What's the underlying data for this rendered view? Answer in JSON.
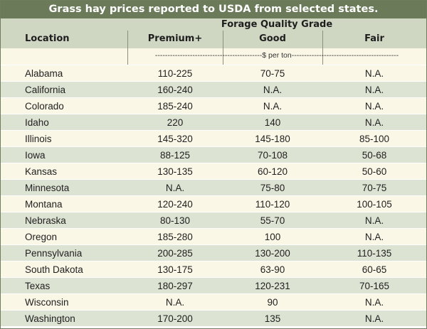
{
  "title": "Grass hay prices reported to USDA from selected states.",
  "header": {
    "group_label": "Forage Quality Grade",
    "location": "Location",
    "premium": "Premium+",
    "good": "Good",
    "fair": "Fair",
    "units": "-------------------------------------------$ per ton-------------------------------------------"
  },
  "rows": [
    {
      "location": "Alabama",
      "premium": "110-225",
      "good": "70-75",
      "fair": "N.A."
    },
    {
      "location": "California",
      "premium": "160-240",
      "good": "N.A.",
      "fair": "N.A."
    },
    {
      "location": "Colorado",
      "premium": "185-240",
      "good": "N.A.",
      "fair": "N.A."
    },
    {
      "location": "Idaho",
      "premium": "220",
      "good": "140",
      "fair": "N.A."
    },
    {
      "location": "Illinois",
      "premium": "145-320",
      "good": "145-180",
      "fair": "85-100"
    },
    {
      "location": "Iowa",
      "premium": "88-125",
      "good": "70-108",
      "fair": "50-68"
    },
    {
      "location": "Kansas",
      "premium": "130-135",
      "good": "60-120",
      "fair": "50-60"
    },
    {
      "location": "Minnesota",
      "premium": "N.A.",
      "good": "75-80",
      "fair": "70-75"
    },
    {
      "location": "Montana",
      "premium": "120-240",
      "good": "110-120",
      "fair": "100-105"
    },
    {
      "location": "Nebraska",
      "premium": "80-130",
      "good": "55-70",
      "fair": "N.A."
    },
    {
      "location": "Oregon",
      "premium": "185-280",
      "good": "100",
      "fair": "N.A."
    },
    {
      "location": "Pennsylvania",
      "premium": "200-285",
      "good": "130-200",
      "fair": "110-135"
    },
    {
      "location": "South Dakota",
      "premium": "130-175",
      "good": "63-90",
      "fair": "60-65"
    },
    {
      "location": "Texas",
      "premium": "180-297",
      "good": "120-231",
      "fair": "70-165"
    },
    {
      "location": "Wisconsin",
      "premium": "N.A.",
      "good": "90",
      "fair": "N.A."
    },
    {
      "location": "Washington",
      "premium": "170-200",
      "good": "135",
      "fair": "N.A."
    }
  ],
  "colors": {
    "title_bg": "#6b7a59",
    "header_bg": "#cfd7c2",
    "row_light": "#faf7e6",
    "row_green": "#dde3d3"
  }
}
